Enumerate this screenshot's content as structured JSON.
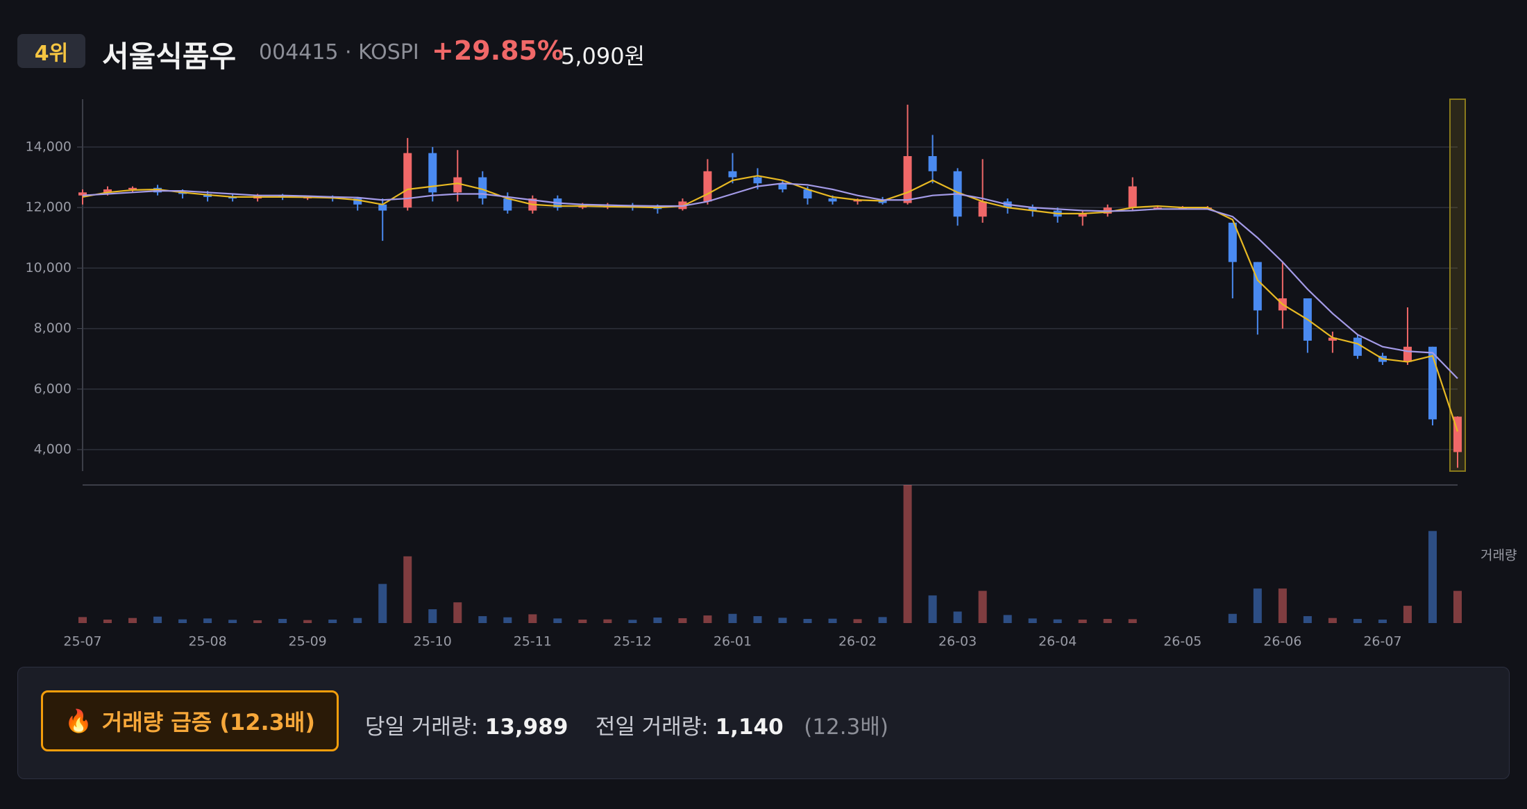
{
  "header": {
    "rank": "4위",
    "name": "서울식품우",
    "code": "004415 · KOSPI",
    "change": "+29.85%",
    "price": "5,090원"
  },
  "chart_data": {
    "type": "candlestick",
    "categories": [
      "25-07",
      null,
      null,
      null,
      null,
      "25-08",
      null,
      null,
      null,
      "25-09",
      null,
      null,
      null,
      null,
      "25-10",
      null,
      null,
      null,
      "25-11",
      null,
      null,
      null,
      "25-12",
      null,
      null,
      null,
      "26-01",
      null,
      null,
      null,
      null,
      "26-02",
      null,
      null,
      null,
      "26-03",
      null,
      null,
      null,
      "26-04",
      null,
      null,
      null,
      null,
      "26-05",
      null,
      null,
      null,
      "26-06",
      null,
      null,
      null,
      "26-07",
      null,
      null,
      null
    ],
    "open": [
      12400,
      12500,
      12600,
      12650,
      12500,
      12450,
      12350,
      12300,
      12400,
      12350,
      12350,
      12300,
      12100,
      12000,
      13800,
      12500,
      13000,
      12300,
      11900,
      12300,
      12000,
      12050,
      12050,
      12000,
      11950,
      12200,
      13200,
      13000,
      12800,
      12600,
      12300,
      12200,
      12250,
      12150,
      13700,
      13200,
      11700,
      12200,
      12000,
      11900,
      11700,
      11800,
      12000,
      12000,
      12000,
      12000,
      11500,
      10200,
      8600,
      9000,
      7600,
      7700,
      7100,
      6900,
      7400,
      3920
    ],
    "high": [
      12600,
      12700,
      12700,
      12750,
      12600,
      12550,
      12450,
      12450,
      12450,
      12400,
      12400,
      12350,
      12300,
      14300,
      14000,
      13900,
      13200,
      12500,
      12400,
      12400,
      12150,
      12150,
      12150,
      12100,
      12300,
      13600,
      13800,
      13300,
      12900,
      12700,
      12400,
      12300,
      12350,
      15400,
      14400,
      13300,
      13600,
      12300,
      12100,
      12000,
      11900,
      12100,
      13000,
      12050,
      12050,
      12050,
      11500,
      10200,
      10200,
      9000,
      7900,
      7800,
      7200,
      8700,
      7400,
      5100
    ],
    "low": [
      12100,
      12400,
      12500,
      12400,
      12300,
      12200,
      12200,
      12200,
      12250,
      12250,
      12200,
      11900,
      10900,
      11900,
      12200,
      12200,
      12100,
      11800,
      11800,
      11900,
      11950,
      11950,
      11900,
      11800,
      11900,
      12100,
      12800,
      12600,
      12500,
      12100,
      12100,
      12100,
      12100,
      12100,
      12800,
      11400,
      11500,
      11800,
      11700,
      11500,
      11400,
      11700,
      11900,
      11950,
      11950,
      11950,
      9000,
      7800,
      8000,
      7200,
      7200,
      7000,
      6800,
      6800,
      4800,
      3400
    ],
    "close": [
      12500,
      12600,
      12650,
      12500,
      12450,
      12350,
      12300,
      12400,
      12350,
      12350,
      12300,
      12100,
      11900,
      13800,
      12500,
      13000,
      12300,
      11900,
      12300,
      12000,
      12050,
      12050,
      12000,
      11950,
      12200,
      13200,
      13000,
      12800,
      12600,
      12300,
      12200,
      12250,
      12150,
      13700,
      13200,
      11700,
      12200,
      12000,
      11900,
      11700,
      11800,
      12000,
      12700,
      12000,
      12000,
      12000,
      10200,
      8600,
      9000,
      7600,
      7700,
      7100,
      6900,
      7400,
      5000,
      5090
    ],
    "volume": [
      2600,
      1500,
      2200,
      2800,
      1600,
      2000,
      1400,
      1200,
      1800,
      1300,
      1500,
      2200,
      17000,
      29000,
      6000,
      9000,
      3000,
      2500,
      3800,
      2000,
      1500,
      1600,
      1400,
      2400,
      2100,
      3300,
      4000,
      3000,
      2300,
      1800,
      1900,
      1700,
      2600,
      60000,
      12000,
      5000,
      14000,
      3500,
      2000,
      1600,
      1500,
      1800,
      1700,
      0,
      0,
      0,
      4000,
      15000,
      15000,
      3000,
      2200,
      1800,
      1500,
      7500,
      40000,
      13989
    ],
    "overlays": [
      {
        "color": "#e8b923",
        "values": [
          12350,
          12500,
          12580,
          12600,
          12500,
          12420,
          12350,
          12350,
          12350,
          12340,
          12320,
          12250,
          12100,
          12600,
          12700,
          12800,
          12600,
          12300,
          12100,
          12050,
          12050,
          12030,
          12020,
          12000,
          12050,
          12450,
          12900,
          13050,
          12900,
          12600,
          12350,
          12250,
          12220,
          12500,
          12900,
          12500,
          12200,
          12000,
          11900,
          11800,
          11800,
          11850,
          12000,
          12050,
          12000,
          12000,
          11600,
          9600,
          8800,
          8300,
          7700,
          7500,
          7000,
          6900,
          7100,
          4600
        ]
      },
      {
        "color": "#a49be8",
        "values": [
          12400,
          12450,
          12500,
          12550,
          12550,
          12500,
          12450,
          12400,
          12400,
          12380,
          12350,
          12330,
          12250,
          12300,
          12400,
          12450,
          12450,
          12350,
          12250,
          12150,
          12100,
          12080,
          12060,
          12050,
          12050,
          12200,
          12450,
          12700,
          12800,
          12750,
          12600,
          12400,
          12250,
          12250,
          12400,
          12450,
          12300,
          12100,
          12000,
          11950,
          11900,
          11880,
          11900,
          11950,
          11950,
          11950,
          11700,
          11000,
          10200,
          9300,
          8500,
          7800,
          7400,
          7250,
          7200,
          6350
        ]
      }
    ],
    "up_color": "#f06868",
    "down_color": "#4a8af0",
    "ylim": [
      3290,
      15580
    ],
    "yticks": [
      {
        "value": 4000,
        "label": "4,000"
      },
      {
        "value": 6000,
        "label": "6,000"
      },
      {
        "value": 8000,
        "label": "8,000"
      },
      {
        "value": 10000,
        "label": "10,000"
      },
      {
        "value": 12000,
        "label": "12,000"
      },
      {
        "value": 14000,
        "label": "14,000"
      }
    ],
    "grid": true,
    "volume_ylim": [
      0,
      60000
    ],
    "volume_label": "거래량"
  },
  "footer": {
    "badge_icon": "🔥",
    "badge": "거래량 급증 (12.3배)",
    "today_label": "당일 거래량:",
    "today_value": "13,989",
    "prev_label": "전일 거래량:",
    "prev_value": "1,140",
    "ratio": "(12.3배)"
  }
}
